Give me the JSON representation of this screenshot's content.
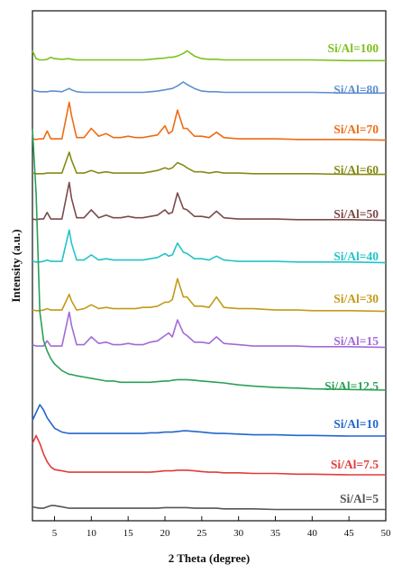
{
  "chart_data": {
    "type": "line",
    "title": "",
    "xlabel": "2 Theta (degree)",
    "ylabel": "Intensity (a.u.)",
    "xlim": [
      2,
      50
    ],
    "xticks": [
      5,
      10,
      15,
      20,
      25,
      30,
      35,
      40,
      45,
      50
    ],
    "yticks_shown": false,
    "grid": false,
    "legend": "labels placed beside each trace, right side",
    "x": [
      2,
      2.5,
      3,
      3.5,
      4,
      4.5,
      5,
      6,
      7,
      7.3,
      8,
      9,
      10,
      11,
      12,
      13,
      14,
      15,
      16,
      17,
      18,
      19,
      20,
      20.5,
      21,
      21.7,
      22.5,
      23,
      24,
      25,
      26,
      27,
      28,
      30,
      32,
      35,
      38,
      40,
      45,
      50
    ],
    "series": [
      {
        "name": "Si/Al=100",
        "color": "#7cc21c",
        "values": [
          8,
          2,
          1,
          1,
          1.5,
          3,
          2,
          1.5,
          2,
          1.5,
          1,
          1,
          1,
          1,
          1,
          1,
          1,
          1,
          1,
          1,
          1.5,
          2,
          2.5,
          3,
          3,
          4,
          6,
          8,
          4,
          2,
          1.5,
          1.5,
          1,
          1,
          1,
          1,
          1,
          1,
          0.5,
          0.5
        ]
      },
      {
        "name": "Si/Al=80",
        "color": "#5f8fcc",
        "values": [
          3,
          2,
          1.5,
          1.5,
          1.5,
          2,
          2,
          1.5,
          4,
          3,
          1.5,
          1,
          1,
          1,
          1,
          1,
          1,
          1,
          1,
          1,
          1.5,
          2,
          3,
          3.5,
          4,
          6,
          9,
          7,
          4,
          2,
          1.5,
          1.5,
          1,
          1,
          1,
          1,
          1,
          1,
          0.5,
          0.5
        ]
      },
      {
        "name": "Si/Al=70",
        "color": "#ee6c14",
        "values": [
          2,
          1.5,
          2,
          2,
          8,
          2,
          2,
          2,
          30,
          20,
          3,
          3,
          10,
          4,
          6,
          3,
          3,
          4,
          3,
          3,
          4,
          5,
          12,
          6,
          8,
          24,
          10,
          10,
          4,
          4,
          3,
          7,
          3,
          2,
          2,
          2,
          1.5,
          1.5,
          1.5,
          1
        ]
      },
      {
        "name": "Si/Al=60",
        "color": "#868b16",
        "values": [
          2,
          1.5,
          1.5,
          1.5,
          2,
          2,
          2,
          2,
          18,
          12,
          2,
          2,
          4,
          2,
          3,
          2,
          2,
          2,
          2,
          2,
          3,
          4,
          6,
          5,
          6,
          10,
          8,
          6,
          3,
          3,
          2,
          3,
          2,
          2,
          1.5,
          1.5,
          1.5,
          1.5,
          1,
          1
        ]
      },
      {
        "name": "Si/Al=50",
        "color": "#7b4a4a",
        "values": [
          2,
          1.5,
          2,
          2,
          7,
          2,
          2,
          2,
          30,
          18,
          3,
          3,
          9,
          3,
          5,
          3,
          3,
          4,
          3,
          3,
          4,
          5,
          9,
          6,
          7,
          22,
          10,
          9,
          4,
          4,
          3,
          8,
          3,
          2,
          2,
          2,
          1.5,
          1.5,
          1.5,
          1
        ]
      },
      {
        "name": "Si/Al=40",
        "color": "#22c4c8",
        "values": [
          2,
          1.5,
          1.5,
          2,
          3,
          2,
          2,
          2,
          26,
          16,
          3,
          3,
          7,
          3,
          4,
          3,
          3,
          3,
          3,
          3,
          4,
          5,
          8,
          6,
          7,
          16,
          9,
          8,
          4,
          4,
          3,
          6,
          3,
          2,
          2,
          2,
          1.5,
          1.5,
          1.5,
          1
        ]
      },
      {
        "name": "Si/Al=30",
        "color": "#c29a18",
        "values": [
          2,
          1.5,
          1.5,
          2,
          3,
          2,
          2,
          2,
          14,
          9,
          2,
          3,
          6,
          3,
          4,
          3,
          3,
          3,
          3,
          4,
          4,
          5,
          8,
          8,
          10,
          26,
          12,
          12,
          5,
          5,
          4,
          12,
          4,
          3,
          3,
          2,
          2,
          1.5,
          1.5,
          1
        ]
      },
      {
        "name": "Si/Al=15",
        "color": "#a06bd6",
        "values": [
          3,
          2,
          2,
          2,
          6,
          2,
          2,
          2,
          28,
          18,
          3,
          3,
          9,
          4,
          5,
          3,
          3,
          4,
          3,
          3,
          5,
          6,
          10,
          12,
          9,
          22,
          12,
          10,
          5,
          5,
          4,
          9,
          4,
          3,
          2,
          2,
          2,
          1.5,
          1.5,
          1
        ]
      },
      {
        "name": "Si/Al=12.5",
        "color": "#2aa059",
        "values": [
          200,
          150,
          60,
          38,
          30,
          24,
          20,
          15,
          12,
          12,
          11,
          10,
          9,
          8,
          7,
          7,
          6,
          6,
          6,
          6,
          6,
          6.5,
          7,
          7,
          7.5,
          8,
          8,
          8,
          7.5,
          7,
          6.5,
          6,
          5.5,
          4,
          3,
          2,
          1.5,
          1,
          0.5,
          0
        ]
      },
      {
        "name": "Si/Al=10",
        "color": "#2266cc",
        "values": [
          12,
          18,
          24,
          20,
          14,
          10,
          6,
          3,
          2,
          2,
          2,
          2,
          2,
          2,
          2,
          2,
          2,
          2,
          2,
          2,
          2.5,
          2.5,
          3,
          3,
          3,
          3.5,
          4,
          4,
          3.5,
          3,
          2.5,
          2,
          2,
          1.5,
          1,
          1,
          0.5,
          0.5,
          0,
          0
        ]
      },
      {
        "name": "Si/Al=7.5",
        "color": "#e23b3b",
        "values": [
          24,
          30,
          24,
          16,
          10,
          6,
          4,
          3,
          2,
          2,
          2,
          2,
          2,
          2,
          2,
          2,
          2,
          2,
          2,
          2,
          2,
          2.5,
          3,
          3,
          3,
          3.5,
          3.5,
          3.5,
          3,
          2.5,
          2,
          2,
          1.5,
          1.5,
          1,
          1,
          0.5,
          0.5,
          0,
          0
        ]
      },
      {
        "name": "Si/Al=5",
        "color": "#555555",
        "values": [
          3,
          2.5,
          2,
          2,
          3,
          4,
          4,
          3,
          2,
          2,
          2,
          2,
          2,
          2,
          2,
          2,
          2,
          2,
          2,
          2,
          2,
          2,
          2.5,
          2.5,
          2.5,
          2.5,
          2.5,
          2.5,
          2,
          2,
          2,
          2,
          1.5,
          1.5,
          1.5,
          1,
          1,
          1,
          1,
          1
        ]
      }
    ]
  }
}
